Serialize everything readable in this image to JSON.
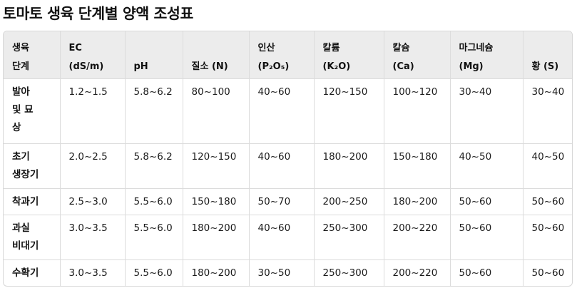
{
  "title": "토마토 생육 단계별 양액 조성표",
  "header": {
    "stage": [
      "생육",
      "단계"
    ],
    "ec": [
      "EC",
      "(dS/m)"
    ],
    "ph": "pH",
    "n": "질소 (N)",
    "p": [
      "인산",
      "(P₂O₅)"
    ],
    "k": [
      "칼륨",
      "(K₂O)"
    ],
    "ca": [
      "칼슘",
      "(Ca)"
    ],
    "mg": [
      "마그네슘",
      "(Mg)"
    ],
    "s": "황 (S)"
  },
  "rows": [
    {
      "stage": [
        "발아",
        "및 묘",
        "상"
      ],
      "ec": "1.2~1.5",
      "ph": "5.8~6.2",
      "n": "80~100",
      "p": "40~60",
      "k": "120~150",
      "ca": "100~120",
      "mg": "30~40",
      "s": "30~40"
    },
    {
      "stage": [
        "초기",
        "생장기"
      ],
      "ec": "2.0~2.5",
      "ph": "5.8~6.2",
      "n": "120~150",
      "p": "40~60",
      "k": "180~200",
      "ca": "150~180",
      "mg": "40~50",
      "s": "40~50"
    },
    {
      "stage": [
        "착과기"
      ],
      "ec": "2.5~3.0",
      "ph": "5.5~6.0",
      "n": "150~180",
      "p": "50~70",
      "k": "200~250",
      "ca": "180~200",
      "mg": "50~60",
      "s": "50~60"
    },
    {
      "stage": [
        "과실",
        "비대기"
      ],
      "ec": "3.0~3.5",
      "ph": "5.5~6.0",
      "n": "180~200",
      "p": "40~60",
      "k": "250~300",
      "ca": "200~220",
      "mg": "50~60",
      "s": "50~60"
    },
    {
      "stage": [
        "수확기"
      ],
      "ec": "3.0~3.5",
      "ph": "5.5~6.0",
      "n": "180~200",
      "p": "30~50",
      "k": "250~300",
      "ca": "200~220",
      "mg": "50~60",
      "s": "50~60"
    }
  ]
}
